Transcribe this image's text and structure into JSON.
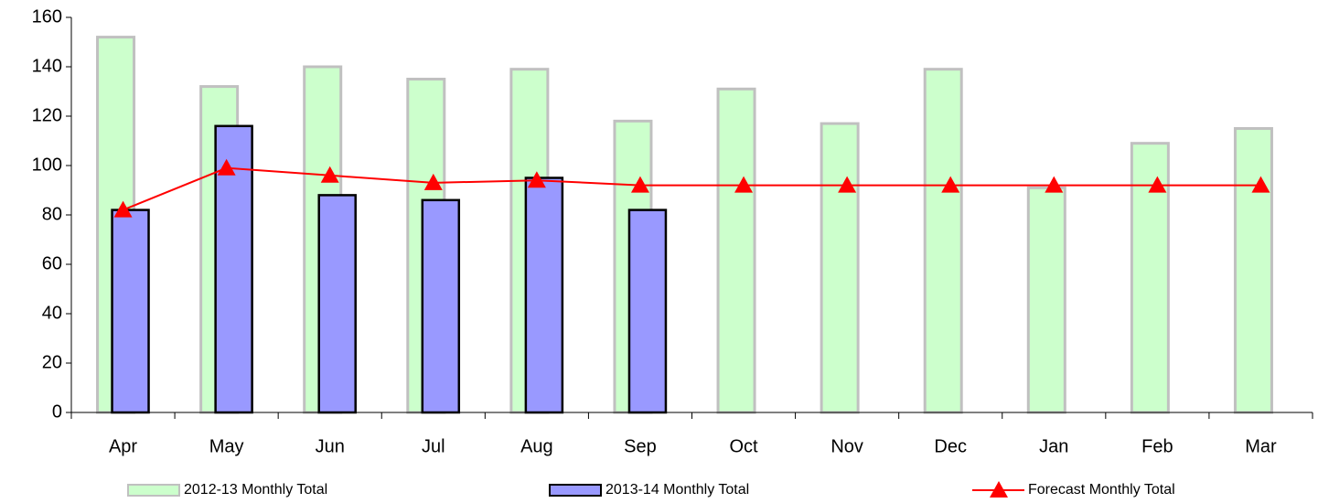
{
  "chart_data": {
    "type": "bar-line",
    "categories": [
      "Apr",
      "May",
      "Jun",
      "Jul",
      "Aug",
      "Sep",
      "Oct",
      "Nov",
      "Dec",
      "Jan",
      "Feb",
      "Mar"
    ],
    "series": [
      {
        "name": "2012-13 Monthly Total",
        "type": "bar",
        "color": "#ccffcc",
        "values": [
          152,
          132,
          140,
          135,
          139,
          118,
          131,
          117,
          139,
          91,
          109,
          115
        ]
      },
      {
        "name": "2013-14 Monthly Total",
        "type": "bar",
        "color": "#9999ff",
        "values": [
          82,
          116,
          88,
          86,
          95,
          82,
          null,
          null,
          null,
          null,
          null,
          null
        ]
      },
      {
        "name": "Forecast Monthly Total",
        "type": "line",
        "color": "#ff0000",
        "values": [
          82,
          99,
          96,
          93,
          94,
          92,
          92,
          92,
          92,
          92,
          92,
          92
        ]
      }
    ],
    "ylim": [
      0,
      160
    ],
    "yticks": [
      0,
      20,
      40,
      60,
      80,
      100,
      120,
      140,
      160
    ],
    "grid": false,
    "legend": "bottom"
  }
}
